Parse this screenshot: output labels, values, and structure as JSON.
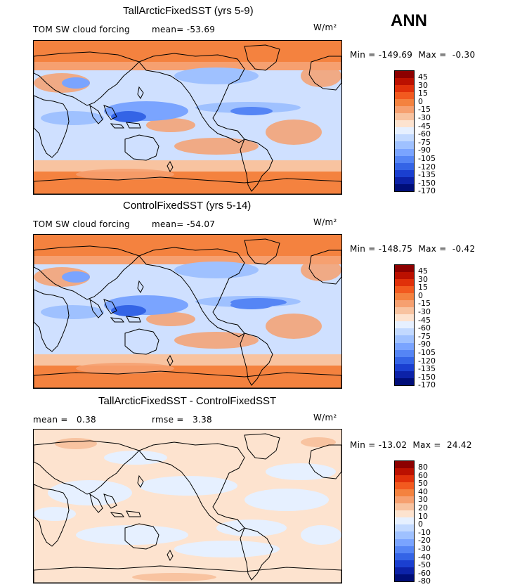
{
  "season": "ANN",
  "units": "W/m²",
  "colors": {
    "land": "#000000",
    "scale_abs": [
      "#8c0000",
      "#bb1000",
      "#e0300a",
      "#f25a1f",
      "#f4823f",
      "#f6a070",
      "#f8c3a0",
      "#fde3cf",
      "#e6f0ff",
      "#c2d9ff",
      "#9fc1ff",
      "#7aa4ff",
      "#5585f5",
      "#3464e6",
      "#1a3fd0",
      "#0c22a8",
      "#000e78"
    ],
    "scale_diff": [
      "#8c0000",
      "#bb1000",
      "#e0300a",
      "#f25a1f",
      "#f4823f",
      "#f6a070",
      "#f8c3a0",
      "#fde3cf",
      "#e6f0ff",
      "#c2d9ff",
      "#9fc1ff",
      "#7aa4ff",
      "#5585f5",
      "#3464e6",
      "#1a3fd0",
      "#0c22a8",
      "#000e78"
    ]
  },
  "chart_data": [
    {
      "type": "heatmap",
      "title": "TallArcticFixedSST (yrs 5-9)",
      "field": "TOM SW cloud forcing",
      "mean_label": "mean=",
      "mean": "-53.69",
      "min_label": "Min =",
      "min": "-149.69",
      "max_label": "Max =",
      "max": "-0.30",
      "levels": [
        "45",
        "30",
        "15",
        "0",
        "-15",
        "-30",
        "-45",
        "-60",
        "-75",
        "-90",
        "-105",
        "-120",
        "-135",
        "-150",
        "-170"
      ]
    },
    {
      "type": "heatmap",
      "title": "ControlFixedSST (yrs 5-14)",
      "field": "TOM SW cloud forcing",
      "mean_label": "mean=",
      "mean": "-54.07",
      "min_label": "Min =",
      "min": "-148.75",
      "max_label": "Max =",
      "max": "-0.42",
      "levels": [
        "45",
        "30",
        "15",
        "0",
        "-15",
        "-30",
        "-45",
        "-60",
        "-75",
        "-90",
        "-105",
        "-120",
        "-135",
        "-150",
        "-170"
      ]
    },
    {
      "type": "heatmap",
      "title": "TallArcticFixedSST - ControlFixedSST",
      "mean_label": "mean =",
      "mean": "0.38",
      "rmse_label": "rmse =",
      "rmse": "3.38",
      "min_label": "Min =",
      "min": "-13.02",
      "max_label": "Max =",
      "max": "24.42",
      "levels": [
        "80",
        "60",
        "50",
        "40",
        "30",
        "20",
        "10",
        "0",
        "-10",
        "-20",
        "-30",
        "-40",
        "-50",
        "-60",
        "-80"
      ]
    }
  ]
}
